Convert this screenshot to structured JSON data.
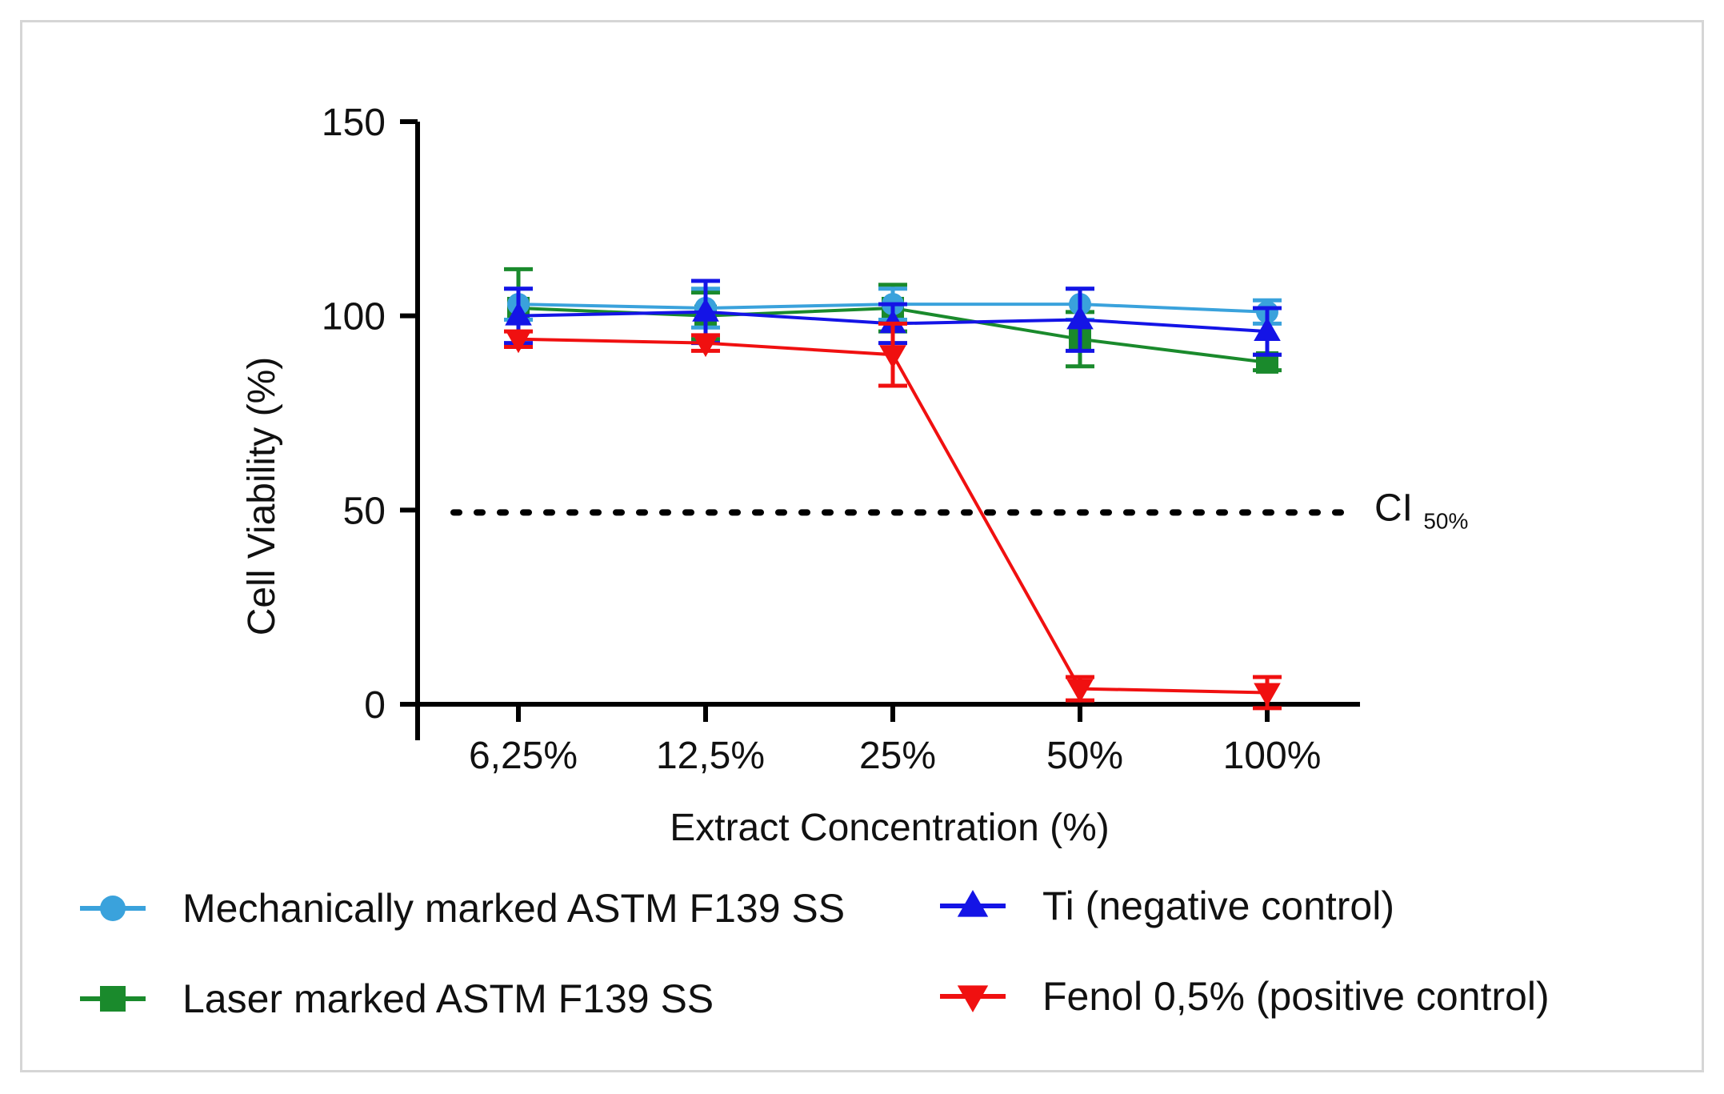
{
  "chart_data": {
    "type": "line",
    "xlabel": "Extract Concentration (%)",
    "ylabel": "Cell Viability (%)",
    "ylim": [
      0,
      150
    ],
    "yticks": [
      0,
      50,
      100,
      150
    ],
    "categories": [
      "6,25%",
      "12,5%",
      "25%",
      "50%",
      "100%"
    ],
    "reference_line": {
      "value": 50,
      "label": "CI",
      "label_sub": "50%",
      "style": "dotted"
    },
    "series": [
      {
        "name": "Mechanically marked ASTM F139 SS",
        "color": "#3aa2dc",
        "marker": "circle",
        "values": [
          103,
          102,
          103,
          103,
          101
        ],
        "errors": [
          4,
          5,
          4,
          4,
          3
        ]
      },
      {
        "name": "Ti  (negative control)",
        "color": "#1414e6",
        "marker": "triangle-up",
        "values": [
          100,
          101,
          98,
          99,
          96
        ],
        "errors": [
          7,
          8,
          5,
          8,
          6
        ]
      },
      {
        "name": "Laser marked ASTM F139 SS",
        "color": "#1a8a2c",
        "marker": "square",
        "values": [
          102,
          100,
          102,
          94,
          88
        ],
        "errors": [
          10,
          6,
          6,
          7,
          2
        ]
      },
      {
        "name": "Fenol 0,5%  (positive control)",
        "color": "#f01010",
        "marker": "triangle-down",
        "values": [
          94,
          93,
          90,
          4,
          3
        ],
        "errors": [
          2,
          2,
          8,
          3,
          4
        ]
      }
    ],
    "legend": {
      "placement": "bottom",
      "columns": 2
    }
  }
}
